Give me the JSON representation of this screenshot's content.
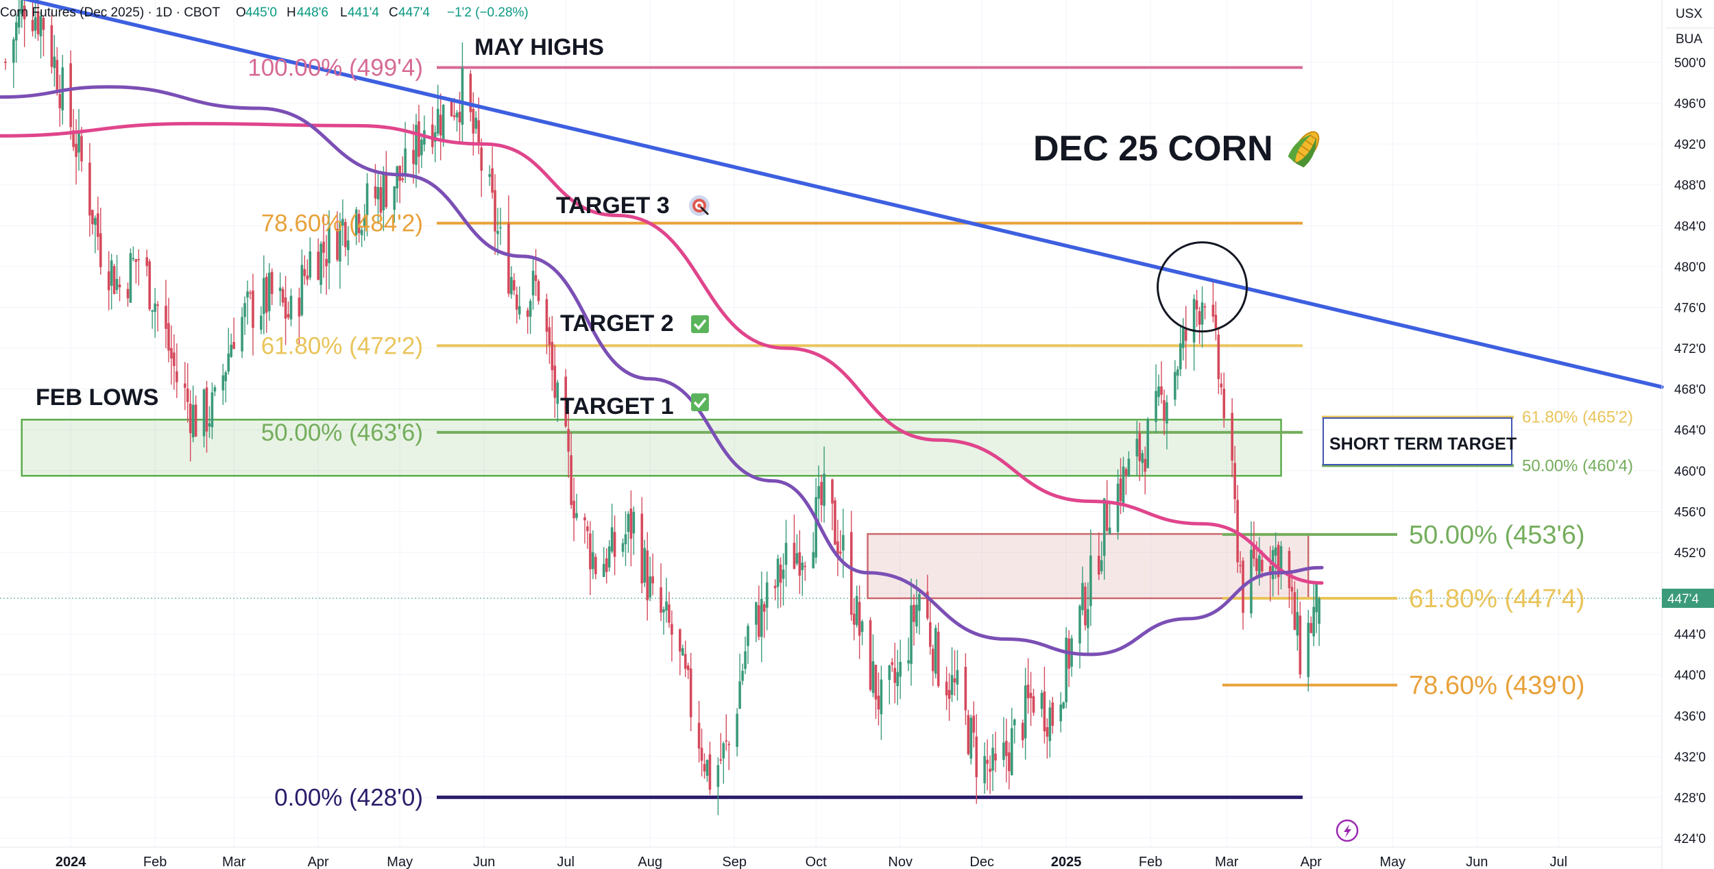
{
  "header": {
    "symbol": "Corn Futures (Dec 2025) · 1D · CBOT",
    "open_label": "O",
    "open": "445'0",
    "high_label": "H",
    "high": "448'6",
    "low_label": "L",
    "low": "441'4",
    "close_label": "C",
    "close": "447'4",
    "change": "−1'2 (−0.28%)"
  },
  "scale_badges": [
    "USX",
    "BUA"
  ],
  "price_badge": "447'4",
  "colors": {
    "up": "#3a9a7a",
    "down": "#d5495b",
    "trendline": "#3d5fe0",
    "ma_pink": "#e0458c",
    "ma_purple": "#7b4fb5",
    "fib_orange": "#e8a13a",
    "fib_yellow": "#e9c45a",
    "fib_green": "#74ad5c",
    "fib_pink": "#d66a95",
    "fib_navy": "#2b1c6b",
    "green_zone": "#5aab4a",
    "red_zone": "#c9686c"
  },
  "annotations": {
    "title": "DEC 25 CORN",
    "title_icon": "corn-icon",
    "may_highs": "MAY HIGHS",
    "feb_lows": "FEB LOWS",
    "target3": "TARGET 3",
    "target2": "TARGET 2",
    "target1": "TARGET 1",
    "short_term_target": "SHORT TERM TARGET",
    "target3_icon": "bullseye-icon",
    "check_icon": "check-icon"
  },
  "chart_data": {
    "type": "candlestick",
    "title": "DEC 25 CORN",
    "symbol": "Corn Futures (Dec 2025)",
    "interval": "1D",
    "exchange": "CBOT",
    "price_unit": "cents/bushel (quarter-cent notation)",
    "ylim": [
      424,
      500.5
    ],
    "y_ticks": [
      "424'0",
      "428'0",
      "432'0",
      "436'0",
      "440'0",
      "444'0",
      "448'0",
      "452'0",
      "456'0",
      "460'0",
      "464'0",
      "468'0",
      "472'0",
      "476'0",
      "480'0",
      "484'0",
      "488'0",
      "492'0",
      "496'0",
      "500'0"
    ],
    "x_ticks": [
      "2024",
      "Feb",
      "Mar",
      "Apr",
      "May",
      "Jun",
      "Jul",
      "Aug",
      "Sep",
      "Oct",
      "Nov",
      "Dec",
      "2025",
      "Feb",
      "Mar",
      "Apr",
      "May",
      "Jun",
      "Jul"
    ],
    "x_range": [
      "2023-12-06",
      "2025-08-08"
    ],
    "ohlc_last": {
      "open": 445.0,
      "high": 448.75,
      "low": 441.5,
      "close": 447.5,
      "change": -1.25,
      "change_pct": -0.28
    },
    "close_path": [
      [
        "2023-12-08",
        500
      ],
      [
        "2023-12-15",
        506
      ],
      [
        "2023-12-22",
        504
      ],
      [
        "2023-12-29",
        497
      ],
      [
        "2024-01-05",
        490
      ],
      [
        "2024-01-12",
        482
      ],
      [
        "2024-01-19",
        478
      ],
      [
        "2024-01-26",
        481
      ],
      [
        "2024-02-02",
        476
      ],
      [
        "2024-02-09",
        469
      ],
      [
        "2024-02-16",
        465
      ],
      [
        "2024-02-23",
        466
      ],
      [
        "2024-03-01",
        474
      ],
      [
        "2024-03-08",
        476
      ],
      [
        "2024-03-15",
        477
      ],
      [
        "2024-03-22",
        475
      ],
      [
        "2024-03-29",
        481
      ],
      [
        "2024-04-05",
        482
      ],
      [
        "2024-04-12",
        485
      ],
      [
        "2024-04-19",
        486
      ],
      [
        "2024-04-26",
        488
      ],
      [
        "2024-05-03",
        489
      ],
      [
        "2024-05-10",
        494
      ],
      [
        "2024-05-17",
        495
      ],
      [
        "2024-05-24",
        497
      ],
      [
        "2024-05-31",
        490
      ],
      [
        "2024-06-07",
        482
      ],
      [
        "2024-06-14",
        477
      ],
      [
        "2024-06-21",
        478
      ],
      [
        "2024-06-28",
        466
      ],
      [
        "2024-07-05",
        456
      ],
      [
        "2024-07-12",
        451
      ],
      [
        "2024-07-19",
        452
      ],
      [
        "2024-07-26",
        455
      ],
      [
        "2024-08-02",
        447
      ],
      [
        "2024-08-09",
        444
      ],
      [
        "2024-08-16",
        437
      ],
      [
        "2024-08-23",
        430
      ],
      [
        "2024-08-30",
        433
      ],
      [
        "2024-09-06",
        444
      ],
      [
        "2024-09-13",
        447
      ],
      [
        "2024-09-20",
        451
      ],
      [
        "2024-09-27",
        453
      ],
      [
        "2024-10-04",
        457
      ],
      [
        "2024-10-11",
        452
      ],
      [
        "2024-10-18",
        443
      ],
      [
        "2024-10-25",
        437
      ],
      [
        "2024-11-01",
        440
      ],
      [
        "2024-11-08",
        448
      ],
      [
        "2024-11-15",
        441
      ],
      [
        "2024-11-22",
        438
      ],
      [
        "2024-11-29",
        432
      ],
      [
        "2024-12-06",
        430
      ],
      [
        "2024-12-13",
        434
      ],
      [
        "2024-12-20",
        438
      ],
      [
        "2024-12-27",
        436
      ],
      [
        "2025-01-03",
        443
      ],
      [
        "2025-01-10",
        449
      ],
      [
        "2025-01-17",
        457
      ],
      [
        "2025-01-24",
        460
      ],
      [
        "2025-01-31",
        463
      ],
      [
        "2025-02-07",
        468
      ],
      [
        "2025-02-14",
        473
      ],
      [
        "2025-02-21",
        478
      ],
      [
        "2025-02-28",
        466
      ],
      [
        "2025-03-07",
        448
      ],
      [
        "2025-03-14",
        452
      ],
      [
        "2025-03-21",
        452
      ],
      [
        "2025-03-28",
        442
      ],
      [
        "2025-04-04",
        447.5
      ]
    ],
    "moving_averages": [
      {
        "name": "",
        "color": "#e0458c",
        "points": [
          [
            "2023-12-06",
            492.8
          ],
          [
            "2024-02-15",
            494
          ],
          [
            "2024-04-15",
            493.8
          ],
          [
            "2024-06-01",
            492
          ],
          [
            "2024-07-20",
            485
          ],
          [
            "2024-09-20",
            472
          ],
          [
            "2024-11-15",
            463
          ],
          [
            "2025-01-10",
            457
          ],
          [
            "2025-02-20",
            454.8
          ],
          [
            "2025-04-05",
            449
          ]
        ]
      },
      {
        "name": "",
        "color": "#7b4fb5",
        "points": [
          [
            "2023-12-06",
            496.6
          ],
          [
            "2024-01-15",
            497.6
          ],
          [
            "2024-03-10",
            495.5
          ],
          [
            "2024-05-01",
            489
          ],
          [
            "2024-06-15",
            481
          ],
          [
            "2024-08-01",
            469
          ],
          [
            "2024-09-15",
            459
          ],
          [
            "2024-10-20",
            450
          ],
          [
            "2024-12-10",
            443.5
          ],
          [
            "2025-01-10",
            442
          ],
          [
            "2025-02-15",
            445.5
          ],
          [
            "2025-03-20",
            450
          ],
          [
            "2025-04-05",
            450.5
          ]
        ]
      }
    ],
    "trendline": {
      "from": [
        "2023-12-06",
        506.8
      ],
      "to": [
        "2025-08-08",
        468.2
      ]
    },
    "fib_levels_main": [
      {
        "label": "100.00% (499'4)",
        "value": 499.5,
        "color": "#d66a95"
      },
      {
        "label": "78.60% (484'2)",
        "value": 484.25,
        "color": "#e8a13a"
      },
      {
        "label": "61.80% (472'2)",
        "value": 472.25,
        "color": "#e9c45a"
      },
      {
        "label": "50.00% (463'6)",
        "value": 463.75,
        "color": "#74ad5c"
      },
      {
        "label": "0.00% (428'0)",
        "value": 428.0,
        "color": "#2b1c6b"
      }
    ],
    "fib_levels_recent": [
      {
        "label": "50.00% (453'6)",
        "value": 453.75,
        "color": "#74ad5c"
      },
      {
        "label": "61.80% (447'4)",
        "value": 447.5,
        "color": "#e9c45a"
      },
      {
        "label": "78.60% (439'0)",
        "value": 439.0,
        "color": "#e8a13a"
      }
    ],
    "fib_levels_short_term": [
      {
        "label": "61.80% (465'2)",
        "value": 465.25,
        "color": "#e9c45a"
      },
      {
        "label": "50.00% (460'4)",
        "value": 460.5,
        "color": "#74ad5c"
      }
    ],
    "zones": [
      {
        "from": "2023-12-14",
        "to": "2025-03-21",
        "low": 459.5,
        "high": 465,
        "color": "#5aab4a"
      },
      {
        "from": "2024-10-20",
        "to": "2025-03-31",
        "low": 447.5,
        "high": 453.8,
        "color": "#c9686c"
      }
    ],
    "circle_marker": {
      "x": "2025-02-20",
      "y": 478
    },
    "grid": true
  }
}
